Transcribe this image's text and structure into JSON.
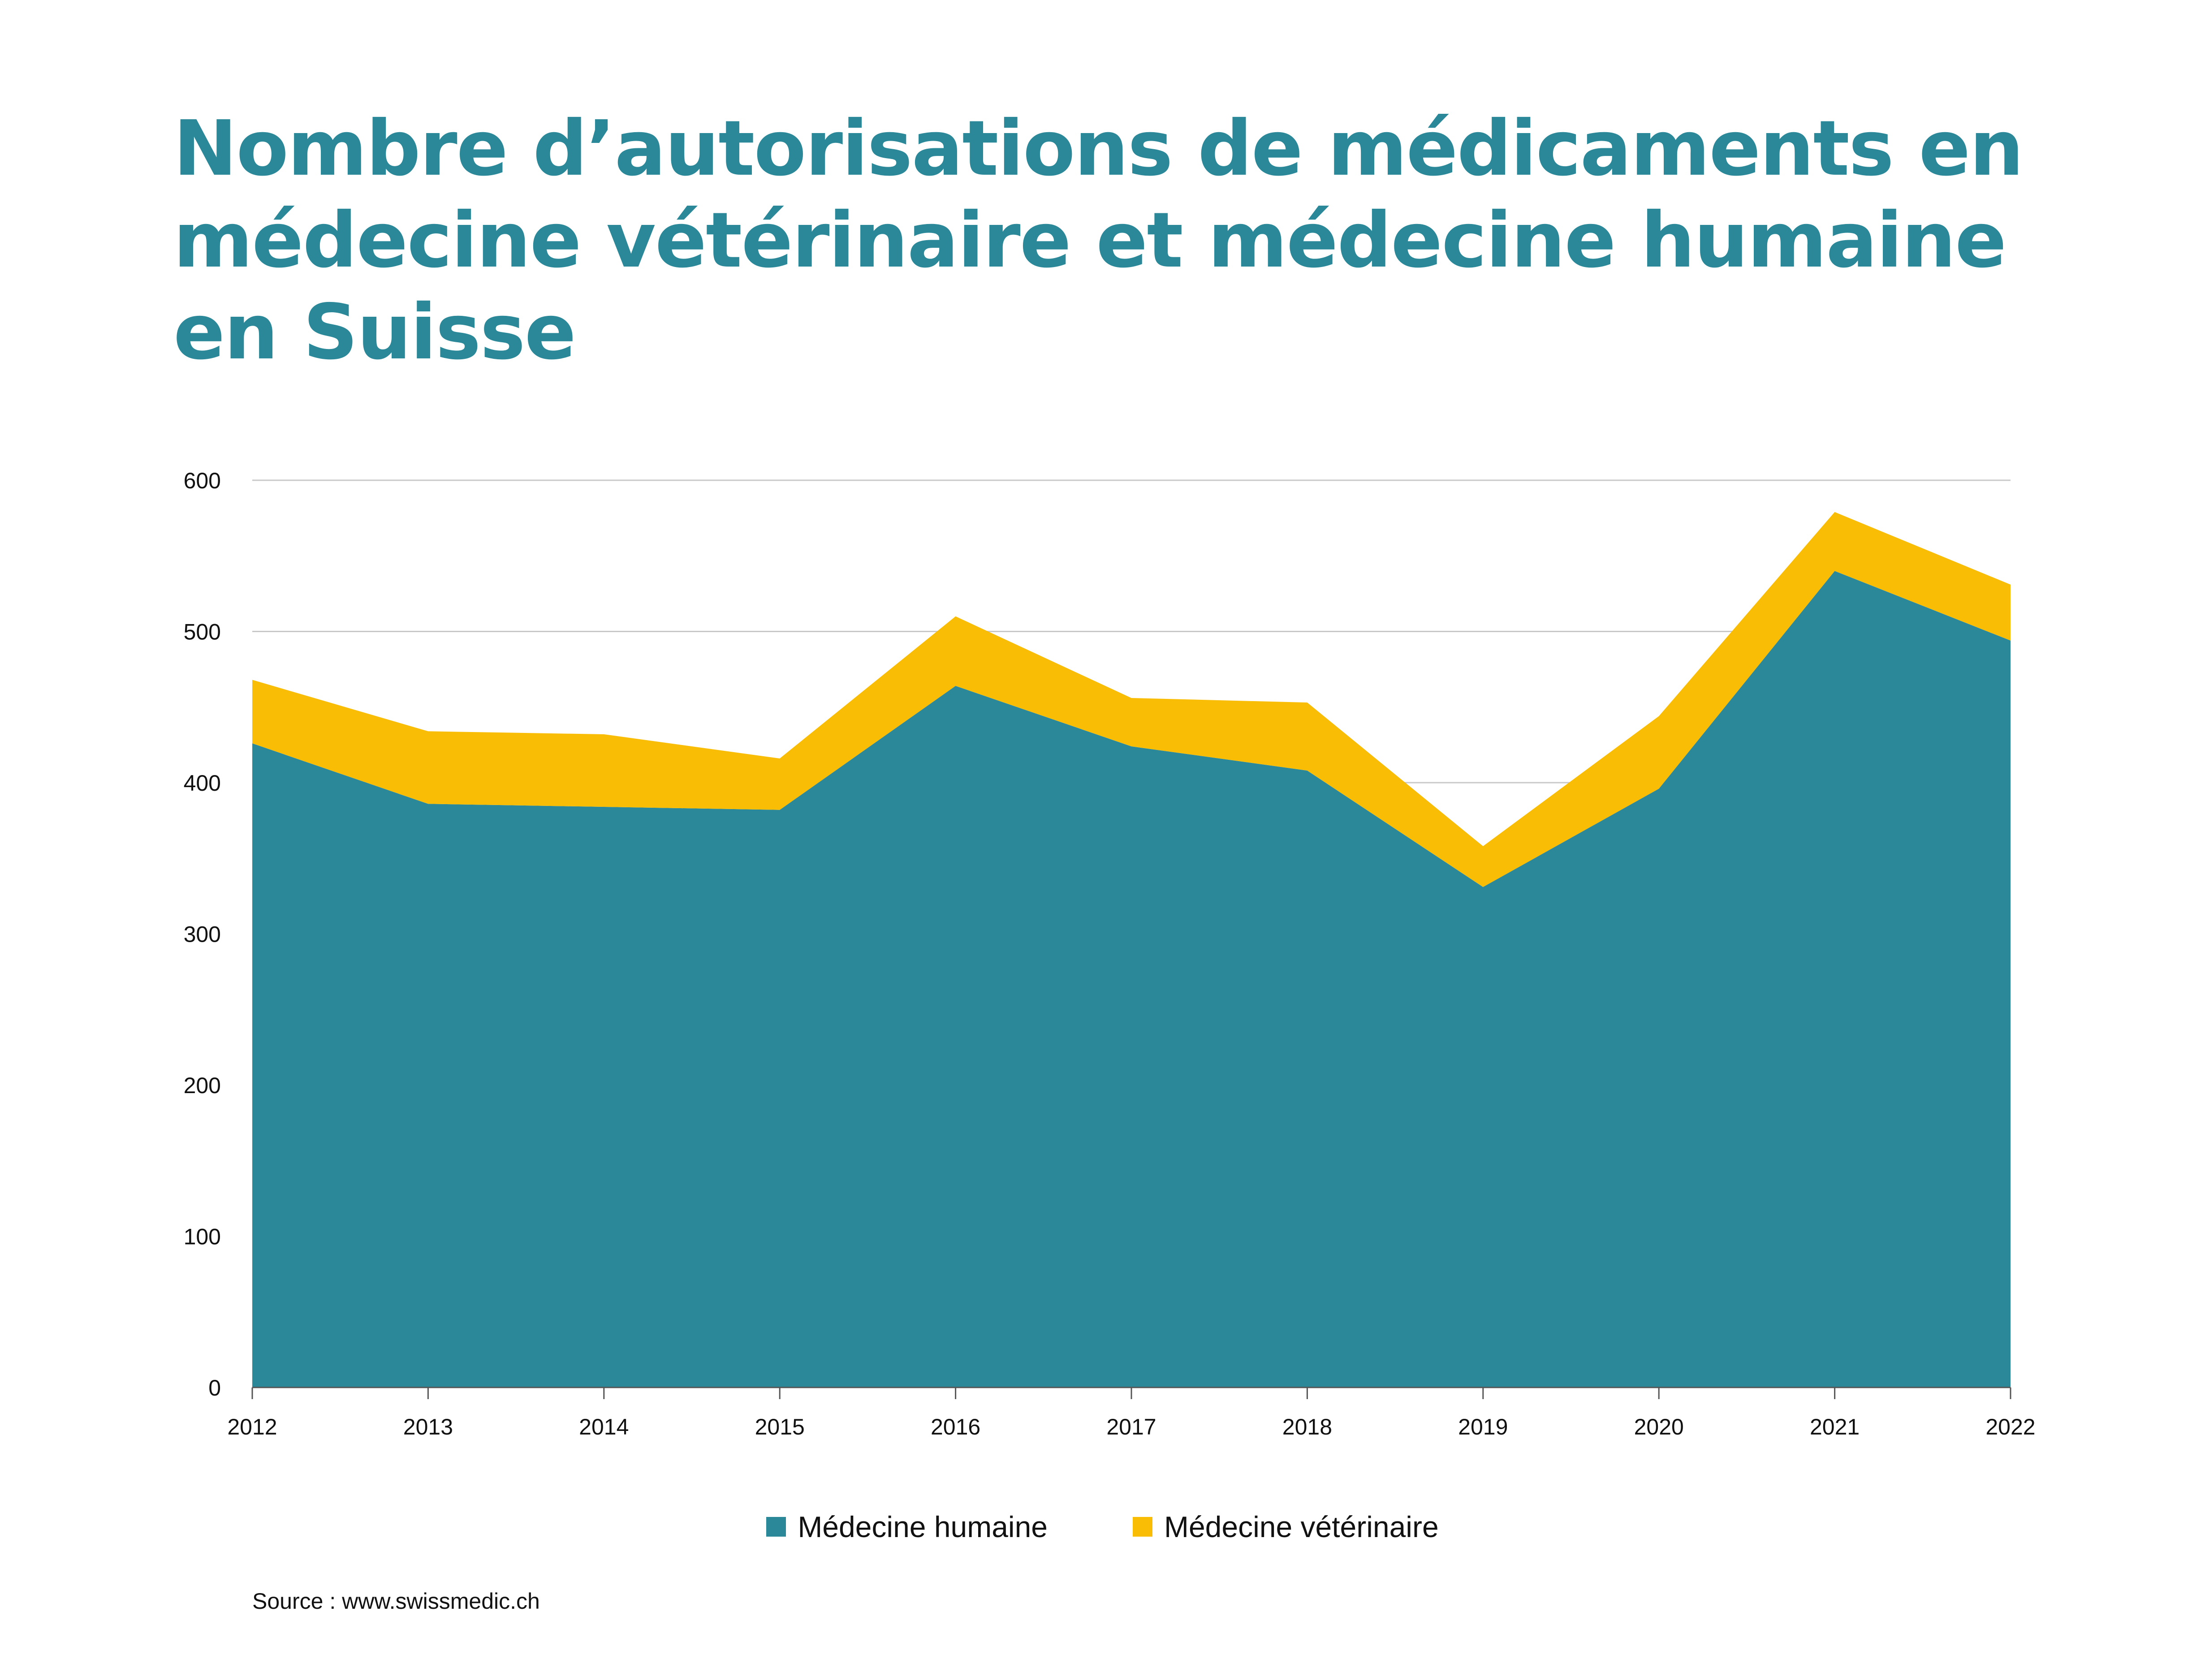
{
  "chart_data": {
    "type": "area",
    "stacked": true,
    "title": "Nombre d’autorisations de médicaments en médecine vétérinaire et médecine humaine en Suisse",
    "categories": [
      "2012",
      "2013",
      "2014",
      "2015",
      "2016",
      "2017",
      "2018",
      "2019",
      "2020",
      "2021",
      "2022"
    ],
    "series": [
      {
        "name": "Médecine humaine",
        "color": "#2a8898",
        "values": [
          426,
          386,
          384,
          382,
          464,
          424,
          408,
          331,
          396,
          540,
          494
        ]
      },
      {
        "name": "Médecine vétérinaire",
        "color": "#f9bd06",
        "values": [
          42,
          48,
          48,
          34,
          46,
          32,
          45,
          27,
          48,
          39,
          37
        ]
      }
    ],
    "yticks": [
      "0",
      "100",
      "200",
      "300",
      "400",
      "500",
      "600"
    ],
    "ylim": [
      0,
      600
    ],
    "grid": true,
    "legend": "bottom-center",
    "source": "Source : www.swissmedic.ch"
  }
}
